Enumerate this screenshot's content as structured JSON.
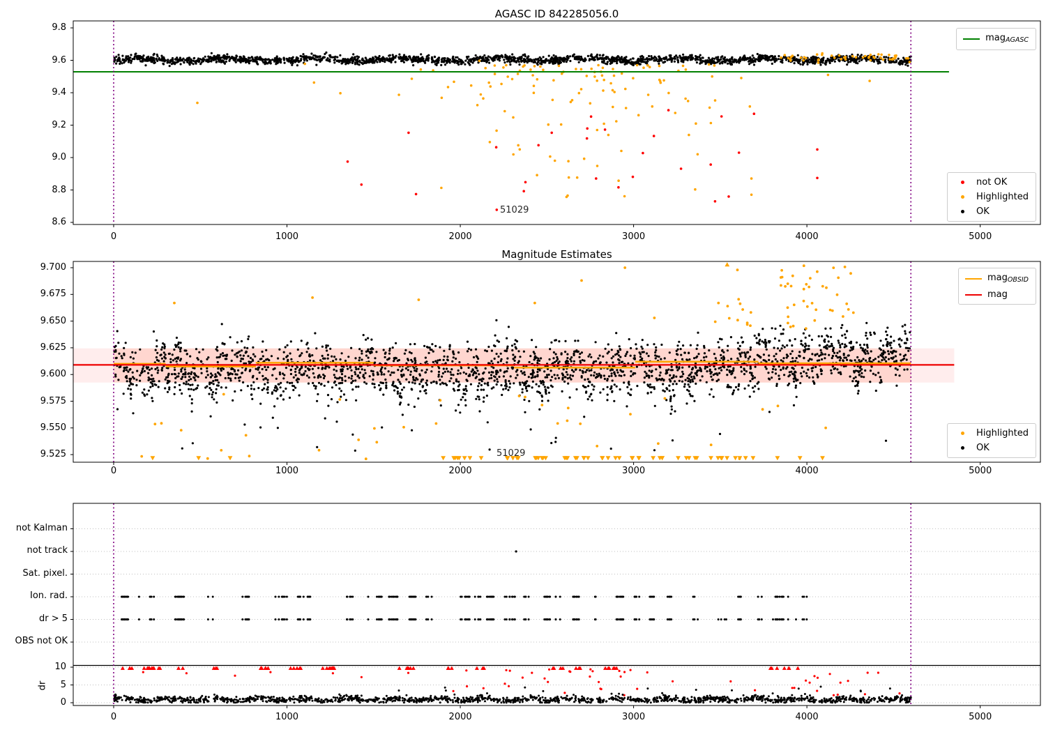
{
  "page": {
    "background": "#ffffff"
  },
  "colors": {
    "ok": "#000000",
    "highlighted": "#FFA500",
    "not_ok": "#FF0000",
    "mag_agasc_line": "#008000",
    "mag_line": "#EE0000",
    "obsid_line": "#FFA500",
    "vline": "#800080",
    "band_outer": "rgba(255,0,0,0.07)",
    "band_inner": "rgba(255,96,48,0.16)"
  },
  "vline_style": {
    "color": "#800080",
    "dash": "2 3.5",
    "width": 1.6
  },
  "chart_data": [
    {
      "type": "scatter",
      "title": "AGASC ID 842285056.0",
      "xlim": [
        -233,
        5347
      ],
      "ylim": [
        8.587,
        9.843
      ],
      "xticks": {
        "values": [
          0,
          1000,
          2000,
          3000,
          4000,
          5000
        ],
        "labels": [
          "0",
          "1000",
          "2000",
          "3000",
          "4000",
          "5000"
        ]
      },
      "yticks": {
        "values": [
          9.8,
          9.6,
          9.4,
          9.2,
          9.0,
          8.8,
          8.6
        ],
        "labels": [
          "9.8",
          "9.6",
          "9.4",
          "9.2",
          "9.0",
          "8.8",
          "8.6"
        ]
      },
      "legends": [
        {
          "position": "upper-right",
          "items": [
            {
              "marker": "line",
              "color": "#008000",
              "label": "mag",
              "sub": "AGASC"
            }
          ]
        },
        {
          "position": "lower-right",
          "items": [
            {
              "marker": "dot",
              "color": "#FF0000",
              "label": "not OK"
            },
            {
              "marker": "dot",
              "color": "#FFA500",
              "label": "Highlighted"
            },
            {
              "marker": "dot",
              "color": "#000000",
              "label": "OK"
            }
          ]
        }
      ],
      "hlines": [
        {
          "name": "mag-agasc",
          "v": 9.529,
          "t": [
            -233,
            4820
          ],
          "color": "#008000",
          "width": 2
        }
      ],
      "vlines": [
        {
          "t": 0
        },
        {
          "t": 4600
        }
      ],
      "annotation": {
        "text": "51029",
        "t": 2210,
        "v": 8.678
      },
      "series": [
        {
          "name": "OK",
          "color": "#000000",
          "size": 1.6,
          "gen": {
            "type": "band",
            "seed": 1,
            "n": 2100,
            "t": [
              0,
              4600
            ],
            "mean": 9.604,
            "sd": 0.012,
            "wave": [
              {
                "amp": 0.008,
                "period": 520
              },
              {
                "amp": 0.0045,
                "period": 140
              }
            ],
            "clip": [
              9.552,
              9.655
            ]
          }
        },
        {
          "name": "Highlighted",
          "color": "#FFA500",
          "size": 1.8,
          "gen": {
            "type": "cloud",
            "seed": 2,
            "n": 115,
            "tDist": "gauss",
            "tMean": 2650,
            "tSd": 430,
            "tClip": [
              1720,
              3680
            ],
            "v": [
              8.72,
              9.57
            ],
            "bias": 2.2
          }
        },
        {
          "name": "Highlighted-right",
          "color": "#FFA500",
          "size": 1.8,
          "gen": {
            "type": "band",
            "seed": 3,
            "n": 50,
            "t": [
              3850,
              4600
            ],
            "mean": 9.618,
            "sd": 0.012,
            "clip": [
              9.585,
              9.65
            ]
          }
        },
        {
          "name": "Highlighted-sparse",
          "color": "#FFA500",
          "size": 1.8,
          "gen": {
            "type": "cloud",
            "seed": 4,
            "n": 18,
            "t": [
              150,
              4450
            ],
            "v": [
              9.33,
              9.6
            ],
            "bias": 1
          }
        },
        {
          "name": "not OK",
          "color": "#FF0000",
          "size": 1.8,
          "gen": {
            "type": "cloud",
            "seed": 5,
            "n": 24,
            "tDist": "gauss",
            "tMean": 2700,
            "tSd": 620,
            "tClip": [
              1320,
              4060
            ],
            "v": [
              8.72,
              9.3
            ],
            "bias": 1
          },
          "points": [
            [
              1350,
              8.975
            ],
            [
              2210,
              8.678
            ],
            [
              3470,
              8.73
            ],
            [
              4060,
              9.05
            ],
            [
              3695,
              9.27
            ]
          ]
        }
      ]
    },
    {
      "type": "scatter",
      "title": "Magnitude Estimates",
      "xlim": [
        -233,
        5347
      ],
      "ylim": [
        9.518,
        9.706
      ],
      "xticks": {
        "values": [
          0,
          1000,
          2000,
          3000,
          4000,
          5000
        ],
        "labels": [
          "0",
          "1000",
          "2000",
          "3000",
          "4000",
          "5000"
        ]
      },
      "yticks": {
        "values": [
          9.7,
          9.675,
          9.65,
          9.625,
          9.6,
          9.575,
          9.55,
          9.525
        ],
        "labels": [
          "9.700",
          "9.675",
          "9.650",
          "9.625",
          "9.600",
          "9.575",
          "9.550",
          "9.525"
        ]
      },
      "legends": [
        {
          "position": "upper-right",
          "items": [
            {
              "marker": "line",
              "color": "#FFA500",
              "label": "mag",
              "sub": "OBSID"
            },
            {
              "marker": "line",
              "color": "#EE0000",
              "label": "mag",
              "sub": ""
            }
          ]
        },
        {
          "position": "lower-right",
          "items": [
            {
              "marker": "dot",
              "color": "#FFA500",
              "label": "Highlighted"
            },
            {
              "marker": "dot",
              "color": "#000000",
              "label": "OK"
            }
          ]
        }
      ],
      "bands": [
        {
          "v": [
            9.5925,
            9.6245
          ],
          "t": [
            -233,
            4850
          ],
          "color": "rgba(255,0,0,0.07)"
        },
        {
          "v": [
            9.5925,
            9.6245
          ],
          "t": [
            0,
            4600
          ],
          "color": "rgba(255,96,48,0.16)"
        }
      ],
      "segments": [
        [
          0,
          300,
          9.61
        ],
        [
          300,
          820,
          9.6075
        ],
        [
          820,
          1500,
          9.611
        ],
        [
          1500,
          2310,
          9.6085
        ],
        [
          2310,
          3010,
          9.6065
        ],
        [
          3010,
          3720,
          9.612
        ],
        [
          3720,
          4600,
          9.6105
        ]
      ],
      "segment_color": "#FFA500",
      "hlines": [
        {
          "name": "mag",
          "v": 9.609,
          "t": [
            -233,
            4850
          ],
          "color": "#EE0000",
          "width": 2.2
        }
      ],
      "vlines": [
        {
          "t": 0
        },
        {
          "t": 4600
        }
      ],
      "annotation": {
        "text": "51029",
        "t": 2200,
        "v": 9.5265
      },
      "series": [
        {
          "name": "OK",
          "color": "#000000",
          "size": 1.6,
          "gen": {
            "type": "band",
            "seed": 6,
            "n": 2400,
            "t": [
              0,
              4600
            ],
            "mean": 9.6035,
            "sd": 0.0125,
            "wave": [
              {
                "amp": 0.007,
                "period": 120
              },
              {
                "amp": 0.005,
                "period": 380
              }
            ],
            "trend": {
              "start": 3250,
              "delta": 0.013,
              "ramp": 700
            },
            "clip": [
              9.52,
              9.662
            ]
          }
        },
        {
          "name": "OK-low",
          "color": "#000000",
          "size": 1.6,
          "gen": {
            "type": "cloud",
            "seed": 7,
            "n": 26,
            "t": [
              60,
              4560
            ],
            "v": [
              9.528,
              9.568
            ],
            "bias": 0.8
          }
        },
        {
          "name": "Highlighted-below",
          "color": "#FFA500",
          "size": 1.9,
          "gen": {
            "type": "cloud",
            "seed": 8,
            "n": 34,
            "t": [
              60,
              4560
            ],
            "v": [
              9.521,
              9.585
            ],
            "bias": 0.9
          }
        },
        {
          "name": "Highlighted-high",
          "color": "#FFA500",
          "size": 1.9,
          "gen": {
            "type": "cloud",
            "seed": 9,
            "n": 52,
            "t": [
              3430,
              4290
            ],
            "v": [
              9.642,
              9.702
            ],
            "bias": 1
          },
          "points": [
            [
              350,
              9.667
            ],
            [
              1147,
              9.672
            ],
            [
              1760,
              9.67
            ],
            [
              2430,
              9.667
            ],
            [
              2950,
              9.7
            ],
            [
              2700,
              9.688
            ],
            [
              3120,
              9.653
            ]
          ]
        },
        {
          "name": "clipped-high",
          "color": "#FFA500",
          "marker": "tri-up",
          "size": 3.4,
          "t_list": [
            3540
          ]
        },
        {
          "name": "clipped-low",
          "color": "#FFA500",
          "marker": "tri-down",
          "size": 3.4,
          "gen": {
            "type": "cloud",
            "seed": 10,
            "n": 58,
            "t": [
              1900,
              3730
            ],
            "v": [
              0,
              1
            ]
          },
          "t_list": [
            225,
            490,
            672,
            3830,
            3960,
            4090
          ]
        }
      ]
    },
    {
      "type": "scatter",
      "title": "",
      "xlim": [
        -233,
        5347
      ],
      "xticks": {
        "values": [
          0,
          1000,
          2000,
          3000,
          4000,
          5000
        ],
        "labels": [
          "0",
          "1000",
          "2000",
          "3000",
          "4000",
          "5000"
        ]
      },
      "categories": [
        "not Kalman",
        "not track",
        "Sat. pixel.",
        "Ion. rad.",
        "dr > 5",
        "OBS not OK"
      ],
      "dr_ticks": {
        "values": [
          10,
          5,
          0
        ],
        "labels": [
          "10",
          "5",
          "0"
        ]
      },
      "ylabel": "dr",
      "hlines": [
        {
          "name": "dr-limit",
          "v": 10.49,
          "t": [
            -233,
            5347
          ],
          "color": "#000000",
          "width": 1.2
        }
      ],
      "vlines": [
        {
          "t": 0
        },
        {
          "t": 4600
        }
      ],
      "series": [
        {
          "kind": "flag-rows",
          "name": "flag-points",
          "color": "#000000",
          "size": 1.5,
          "rows": [
            3,
            4
          ],
          "gen": {
            "type": "clusters",
            "seed": 11,
            "nClusters": 48,
            "t": [
              30,
              4080
            ],
            "per": [
              1,
              8
            ],
            "spread": 20
          }
        },
        {
          "kind": "row-points",
          "name": "not-track-flag",
          "color": "#000000",
          "size": 1.6,
          "row": 1,
          "t_list": [
            2322
          ]
        },
        {
          "kind": "row-cloud",
          "name": "dr5-extra",
          "color": "#000000",
          "size": 1.5,
          "row": 4,
          "gen": {
            "type": "cloud",
            "seed": 17,
            "n": 10,
            "t": [
              3300,
              4100
            ],
            "v": [
              0,
              1
            ]
          }
        },
        {
          "kind": "dr-tri",
          "name": "dr-clipped-red",
          "color": "#FF0000",
          "size": 3,
          "dr": 9.7,
          "gen": {
            "type": "clusters",
            "seed": 12,
            "nClusters": 32,
            "t": [
              40,
              4080
            ],
            "per": [
              1,
              4
            ],
            "spread": 16
          }
        },
        {
          "kind": "dr-cloud",
          "name": "dr-red-mid",
          "color": "#FF0000",
          "size": 1.6,
          "gen": {
            "type": "cloud",
            "seed": 13,
            "n": 30,
            "tDist": "gauss",
            "tMean": 2620,
            "tSd": 430,
            "tClip": [
              1960,
              3340
            ],
            "v": [
              1.8,
              9.4
            ],
            "bias": 1.3
          }
        },
        {
          "kind": "dr-cloud",
          "name": "dr-red-right",
          "color": "#FF0000",
          "size": 1.6,
          "gen": {
            "type": "cloud",
            "seed": 14,
            "n": 16,
            "t": [
              3880,
              4580
            ],
            "v": [
              1.8,
              8.5
            ],
            "bias": 1
          }
        },
        {
          "kind": "dr-cloud",
          "name": "dr-red-sparse",
          "color": "#FF0000",
          "size": 1.6,
          "points": [
            [
              170,
              8.6
            ],
            [
              420,
              8.3
            ],
            [
              700,
              7.6
            ],
            [
              905,
              8.6
            ],
            [
              1265,
              8.3
            ],
            [
              1430,
              7.2
            ],
            [
              1700,
              8.4
            ],
            [
              3560,
              6.0
            ],
            [
              3700,
              3.5
            ]
          ]
        },
        {
          "kind": "dr-cloud",
          "name": "dr-ok-band",
          "color": "#000000",
          "size": 1.5,
          "gen": {
            "type": "band",
            "seed": 15,
            "n": 1500,
            "t": [
              0,
              4600
            ],
            "mean": 0.9,
            "sd": 0.45,
            "wave": [
              {
                "amp": 0.3,
                "period": 260
              }
            ],
            "clip": [
              0.03,
              3.0
            ]
          },
          "points": [
            [
              3,
              2.0
            ],
            [
              6,
              1.5
            ],
            [
              10,
              2.3
            ],
            [
              5,
              0.9
            ]
          ]
        },
        {
          "kind": "dr-cloud",
          "name": "dr-ok-high",
          "color": "#000000",
          "size": 1.5,
          "gen": {
            "type": "cloud",
            "seed": 16,
            "n": 14,
            "t": [
              550,
              4560
            ],
            "v": [
              2.2,
              4.3
            ],
            "bias": 1
          },
          "points": [
            [
              4080,
              4.5
            ],
            [
              4310,
              3.4
            ],
            [
              4480,
              4.0
            ]
          ]
        }
      ]
    }
  ]
}
